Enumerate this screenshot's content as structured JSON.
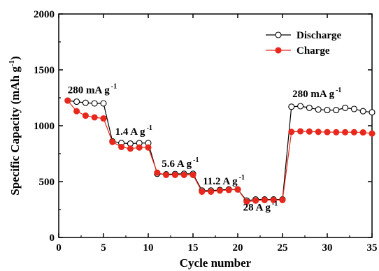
{
  "chart_data": {
    "type": "line",
    "xlabel": "Cycle number",
    "ylabel": "Specific Capacity (mAh g",
    "ylabel_sup": "-1",
    "ylabel_close": ")",
    "xlim": [
      0,
      35
    ],
    "ylim": [
      0,
      2000
    ],
    "xticks": [
      0,
      5,
      10,
      15,
      20,
      25,
      30,
      35
    ],
    "yticks": [
      0,
      500,
      1000,
      1500,
      2000
    ],
    "grid": false,
    "legend_position": "top-right",
    "series": [
      {
        "name": "Discharge",
        "color": "#000000",
        "marker": "open-circle",
        "x": [
          1,
          2,
          3,
          4,
          5,
          6,
          7,
          8,
          9,
          10,
          11,
          12,
          13,
          14,
          15,
          16,
          17,
          18,
          19,
          20,
          21,
          22,
          23,
          24,
          25,
          26,
          27,
          28,
          29,
          30,
          31,
          32,
          33,
          34,
          35
        ],
        "values": [
          1225,
          1215,
          1205,
          1200,
          1200,
          860,
          845,
          840,
          845,
          845,
          570,
          565,
          568,
          570,
          570,
          420,
          420,
          425,
          430,
          430,
          330,
          340,
          340,
          340,
          340,
          1170,
          1175,
          1160,
          1145,
          1140,
          1140,
          1160,
          1150,
          1130,
          1120
        ]
      },
      {
        "name": "Charge",
        "color": "#e8281c",
        "marker": "filled-circle",
        "x": [
          1,
          2,
          3,
          4,
          5,
          6,
          7,
          8,
          9,
          10,
          11,
          12,
          13,
          14,
          15,
          16,
          17,
          18,
          19,
          20,
          21,
          22,
          23,
          24,
          25,
          26,
          27,
          28,
          29,
          30,
          31,
          32,
          33,
          34,
          35
        ],
        "values": [
          1225,
          1130,
          1090,
          1075,
          1065,
          855,
          810,
          795,
          805,
          805,
          580,
          560,
          560,
          560,
          560,
          410,
          410,
          420,
          425,
          430,
          320,
          330,
          335,
          335,
          335,
          945,
          950,
          948,
          945,
          943,
          942,
          942,
          942,
          940,
          930
        ]
      }
    ],
    "annotations": [
      {
        "text": "280 mA g",
        "sup": "-1",
        "x": 1,
        "y": 1290
      },
      {
        "text": "1.4 A g",
        "sup": "-1",
        "x": 6.3,
        "y": 920
      },
      {
        "text": "5.6 A g",
        "sup": "-1",
        "x": 11.5,
        "y": 630
      },
      {
        "text": "11.2 A g",
        "sup": "-1",
        "x": 16.1,
        "y": 475
      },
      {
        "text": "28 A g",
        "sup": "-1",
        "x": 20.6,
        "y": 240
      },
      {
        "text": "280 mA g",
        "sup": "-1",
        "x": 26.1,
        "y": 1255
      }
    ]
  }
}
